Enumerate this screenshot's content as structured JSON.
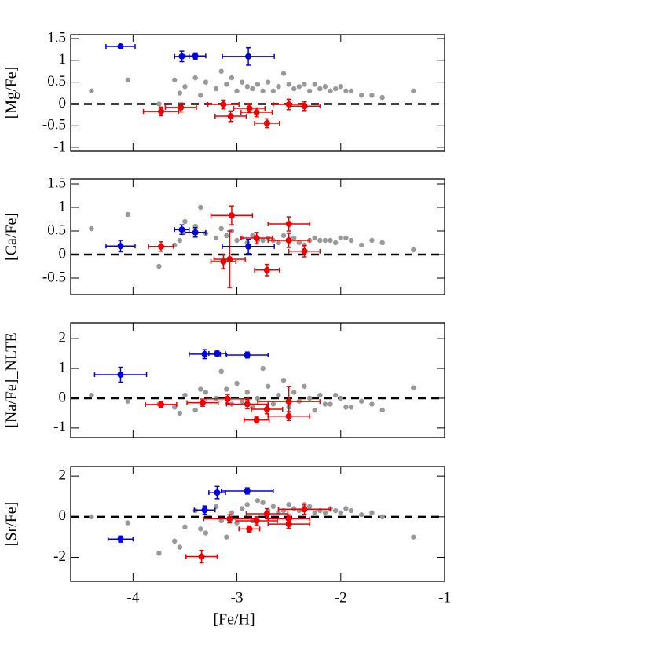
{
  "chart_data": [
    {
      "type": "scatter",
      "ylabel": "[Mg/Fe]",
      "xlim": [
        -4.6,
        -1
      ],
      "xticks": [
        -4,
        -3,
        -2,
        -1
      ],
      "ylim": [
        -1.07,
        1.59
      ],
      "yticks": [
        -1,
        -0.5,
        0,
        0.5,
        1,
        1.5
      ],
      "reference_line": 0,
      "series": [
        {
          "color": "#999999",
          "x": [
            -4.4,
            -4.05,
            -3.75,
            -3.6,
            -3.5,
            -3.4,
            -3.3,
            -3.2,
            -3.1,
            -3.05,
            -3.0,
            -2.95,
            -2.9,
            -2.85,
            -2.8,
            -2.7,
            -2.65,
            -2.6,
            -2.5,
            -2.45,
            -2.4,
            -2.3,
            -2.25,
            -2.2,
            -2.1,
            -2.0,
            -1.9,
            -1.8,
            -1.6,
            -1.3,
            -3.55,
            -3.35,
            -3.15,
            -2.75,
            -2.55,
            -2.35,
            -2.15,
            -2.05,
            -1.95,
            -1.7
          ],
          "y": [
            0.3,
            0.55,
            0.0,
            0.55,
            0.4,
            0.6,
            0.5,
            0.35,
            0.45,
            0.6,
            0.3,
            0.5,
            0.4,
            0.35,
            0.45,
            0.5,
            0.3,
            0.4,
            0.45,
            0.35,
            0.4,
            0.3,
            0.45,
            0.35,
            0.3,
            0.4,
            0.3,
            0.2,
            0.15,
            0.3,
            0.25,
            0.2,
            0.75,
            0.3,
            0.7,
            0.45,
            0.4,
            0.35,
            0.3,
            0.2
          ]
        },
        {
          "color": "#ee0000",
          "x": [
            -3.73,
            -3.54,
            -3.13,
            -3.06,
            -2.88,
            -2.81,
            -2.71,
            -2.5,
            -2.35
          ],
          "y": [
            -0.17,
            -0.08,
            -0.01,
            -0.28,
            -0.1,
            -0.19,
            -0.44,
            -0.01,
            -0.05
          ],
          "xerr": [
            0.17,
            0.15,
            0.15,
            0.15,
            0.15,
            0.15,
            0.12,
            0.15,
            0.15
          ],
          "yerr": [
            0.1,
            0.1,
            0.1,
            0.12,
            0.1,
            0.1,
            0.1,
            0.12,
            0.1
          ]
        },
        {
          "color": "#0000dd",
          "x": [
            -4.12,
            -3.53,
            -3.4,
            -2.89
          ],
          "y": [
            1.32,
            1.09,
            1.1,
            1.09
          ],
          "xerr": [
            0.14,
            0.07,
            0.1,
            0.25
          ],
          "yerr": [
            0.03,
            0.12,
            0.07,
            0.2
          ]
        }
      ]
    },
    {
      "type": "scatter",
      "ylabel": "[Ca/Fe]",
      "xlim": [
        -4.6,
        -1
      ],
      "xticks": [
        -4,
        -3,
        -2,
        -1
      ],
      "ylim": [
        -0.85,
        1.6
      ],
      "yticks": [
        -0.5,
        0,
        0.5,
        1,
        1.5
      ],
      "reference_line": 0,
      "series": [
        {
          "color": "#999999",
          "x": [
            -4.4,
            -4.05,
            -3.75,
            -3.6,
            -3.5,
            -3.4,
            -3.3,
            -3.2,
            -3.1,
            -3.05,
            -3.0,
            -2.95,
            -2.9,
            -2.85,
            -2.8,
            -2.7,
            -2.65,
            -2.6,
            -2.5,
            -2.45,
            -2.4,
            -2.3,
            -2.25,
            -2.2,
            -2.1,
            -2.0,
            -1.9,
            -1.8,
            -1.6,
            -1.3,
            -3.55,
            -3.35,
            -3.15,
            -2.75,
            -2.55,
            -2.35,
            -2.15,
            -2.05,
            -1.95,
            -1.7
          ],
          "y": [
            0.55,
            0.85,
            -0.25,
            0.2,
            0.7,
            0.6,
            0.45,
            0.35,
            0.4,
            0.5,
            0.3,
            0.35,
            0.25,
            0.4,
            0.3,
            0.35,
            0.3,
            0.25,
            0.3,
            0.35,
            0.25,
            0.3,
            0.35,
            0.3,
            0.3,
            0.35,
            0.3,
            0.2,
            0.25,
            0.1,
            0.3,
            1.0,
            0.55,
            0.3,
            0.4,
            0.2,
            0.3,
            0.25,
            0.35,
            0.3
          ]
        },
        {
          "color": "#ee0000",
          "x": [
            -3.73,
            -3.05,
            -2.5,
            -2.81,
            -2.5,
            -2.35,
            -3.13,
            -3.07,
            -2.71
          ],
          "y": [
            0.17,
            0.83,
            0.65,
            0.35,
            0.3,
            0.07,
            -0.15,
            -0.1,
            -0.33
          ],
          "xerr": [
            0.12,
            0.2,
            0.2,
            0.15,
            0.2,
            0.15,
            0.12,
            0.15,
            0.12
          ],
          "yerr": [
            0.1,
            0.2,
            0.15,
            0.12,
            0.15,
            0.12,
            0.15,
            0.6,
            0.12
          ]
        },
        {
          "color": "#0000dd",
          "x": [
            -4.12,
            -3.53,
            -3.4,
            -2.89
          ],
          "y": [
            0.18,
            0.53,
            0.47,
            0.17
          ],
          "xerr": [
            0.14,
            0.07,
            0.1,
            0.25
          ],
          "yerr": [
            0.12,
            0.1,
            0.1,
            0.15
          ]
        }
      ]
    },
    {
      "type": "scatter",
      "ylabel": "[Na/Fe]_NLTE",
      "xlim": [
        -4.6,
        -1
      ],
      "xticks": [
        -4,
        -3,
        -2,
        -1
      ],
      "ylim": [
        -1.32,
        2.53
      ],
      "yticks": [
        -1,
        0,
        1,
        2
      ],
      "reference_line": 0,
      "series": [
        {
          "color": "#999999",
          "x": [
            -4.4,
            -4.05,
            -3.75,
            -3.6,
            -3.5,
            -3.4,
            -3.3,
            -3.2,
            -3.1,
            -3.05,
            -3.0,
            -2.95,
            -2.9,
            -2.85,
            -2.8,
            -2.7,
            -2.65,
            -2.6,
            -2.5,
            -2.45,
            -2.4,
            -2.3,
            -2.25,
            -2.2,
            -2.1,
            -2.0,
            -1.9,
            -1.8,
            -1.6,
            -1.3,
            -3.55,
            -3.35,
            -3.15,
            -2.75,
            -2.55,
            -2.35,
            -2.15,
            -2.05,
            -1.95,
            -1.7
          ],
          "y": [
            0.1,
            -0.1,
            -0.2,
            -0.3,
            0.1,
            -0.4,
            0.2,
            0.0,
            0.3,
            -0.2,
            0.5,
            -0.1,
            0.2,
            -0.3,
            0.0,
            0.4,
            -0.2,
            0.1,
            -0.3,
            0.2,
            -0.1,
            0.0,
            -0.4,
            0.1,
            -0.2,
            0.0,
            -0.3,
            -0.1,
            -0.4,
            0.35,
            -0.5,
            0.3,
            0.9,
            1.0,
            0.6,
            0.4,
            -0.2,
            0.1,
            -0.3,
            -0.2
          ]
        },
        {
          "color": "#ee0000",
          "x": [
            -3.73,
            -3.33,
            -3.09,
            -2.9,
            -2.81,
            -2.71,
            -2.5,
            -2.5
          ],
          "y": [
            -0.21,
            -0.15,
            -0.02,
            -0.2,
            -0.73,
            -0.37,
            -0.11,
            -0.6
          ],
          "xerr": [
            0.15,
            0.15,
            0.2,
            0.2,
            0.12,
            0.15,
            0.3,
            0.2
          ],
          "yerr": [
            0.1,
            0.12,
            0.15,
            0.15,
            0.1,
            0.15,
            0.5,
            0.15
          ]
        },
        {
          "color": "#0000dd",
          "x": [
            -4.12,
            -3.31,
            -3.19,
            -2.9
          ],
          "y": [
            0.79,
            1.48,
            1.5,
            1.45
          ],
          "xerr": [
            0.25,
            0.15,
            0.08,
            0.2
          ],
          "yerr": [
            0.25,
            0.15,
            0.08,
            0.1
          ]
        }
      ]
    },
    {
      "type": "scatter",
      "ylabel": "[Sr/Fe]",
      "xlabel": "[Fe/H]",
      "xlim": [
        -4.6,
        -1
      ],
      "xticks": [
        -4,
        -3,
        -2,
        -1
      ],
      "ylim": [
        -3.18,
        2.47
      ],
      "yticks": [
        -2,
        0,
        2
      ],
      "reference_line": 0,
      "series": [
        {
          "color": "#999999",
          "x": [
            -4.4,
            -4.05,
            -3.75,
            -3.6,
            -3.5,
            -3.4,
            -3.3,
            -3.2,
            -3.1,
            -3.05,
            -3.0,
            -2.95,
            -2.9,
            -2.85,
            -2.8,
            -2.7,
            -2.65,
            -2.6,
            -2.5,
            -2.45,
            -2.4,
            -2.3,
            -2.25,
            -2.2,
            -2.1,
            -2.0,
            -1.9,
            -1.8,
            -1.6,
            -1.3,
            -3.55,
            -3.35,
            -3.15,
            -2.75,
            -2.55,
            -2.35,
            -2.15,
            -2.05,
            -1.95,
            -1.7
          ],
          "y": [
            0.0,
            -0.3,
            -1.8,
            -1.2,
            -0.5,
            0.3,
            -0.8,
            0.5,
            -1.0,
            0.2,
            -0.3,
            0.4,
            0.6,
            -0.2,
            0.8,
            0.3,
            0.5,
            0.2,
            0.6,
            0.4,
            0.3,
            0.5,
            0.2,
            0.3,
            0.4,
            0.2,
            0.3,
            0.1,
            0.0,
            -1.0,
            -1.5,
            -0.6,
            -0.2,
            0.7,
            0.3,
            0.6,
            0.2,
            0.3,
            0.4,
            0.2
          ]
        },
        {
          "color": "#ee0000",
          "x": [
            -3.34,
            -3.07,
            -2.88,
            -2.81,
            -2.71,
            -2.5,
            -2.5,
            -2.35
          ],
          "y": [
            -1.96,
            -0.1,
            -0.6,
            -0.2,
            0.15,
            -0.36,
            -0.1,
            0.37
          ],
          "xerr": [
            0.15,
            0.25,
            0.1,
            0.2,
            0.2,
            0.2,
            0.2,
            0.25
          ],
          "yerr": [
            0.3,
            0.2,
            0.15,
            0.2,
            0.25,
            0.2,
            0.2,
            0.25
          ]
        },
        {
          "color": "#0000dd",
          "x": [
            -4.12,
            -3.31,
            -3.19,
            -2.9
          ],
          "y": [
            -1.1,
            0.33,
            1.19,
            1.27
          ],
          "xerr": [
            0.12,
            0.1,
            0.08,
            0.25
          ],
          "yerr": [
            0.15,
            0.2,
            0.3,
            0.15
          ]
        }
      ]
    }
  ]
}
